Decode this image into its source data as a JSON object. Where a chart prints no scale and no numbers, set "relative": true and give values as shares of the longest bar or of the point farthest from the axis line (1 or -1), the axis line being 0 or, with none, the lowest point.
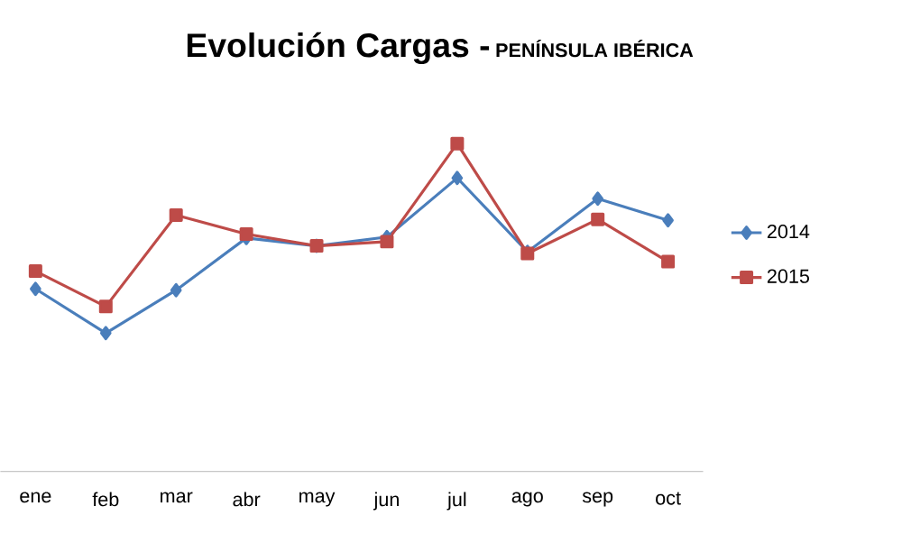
{
  "chart_data": {
    "type": "line",
    "title": "Evolución Cargas -",
    "subtitle": "PENÍNSULA IBÉRICA",
    "relative": true,
    "legend": "right",
    "grid": false,
    "categories": [
      "ene",
      "feb",
      "mar",
      "abr",
      "may",
      "jun",
      "jul",
      "ago",
      "sep",
      "oct"
    ],
    "series": [
      {
        "name": "2014",
        "color": "#4a7ebb",
        "marker": "diamond",
        "values": [
          0.557,
          0.422,
          0.553,
          0.712,
          0.688,
          0.715,
          0.895,
          0.67,
          0.832,
          0.766
        ]
      },
      {
        "name": "2015",
        "color": "#be4b48",
        "marker": "square",
        "values": [
          0.611,
          0.503,
          0.782,
          0.724,
          0.688,
          0.701,
          1,
          0.665,
          0.769,
          0.64
        ]
      }
    ]
  }
}
